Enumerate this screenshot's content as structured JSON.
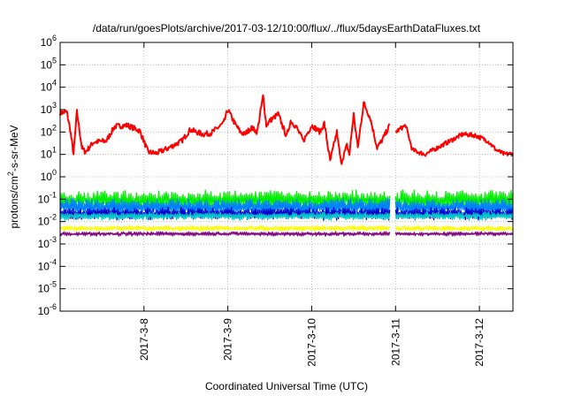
{
  "chart_data": {
    "type": "line",
    "title": "/data/run/goesPlots/archive/2017-03-12/10:00/flux/../flux/5daysEarthDataFluxes.txt",
    "xlabel": "Coordinated Universal Time (UTC)",
    "ylabel": {
      "prefix": "protons/cm",
      "sup": "2",
      "suffix": "-s-sr-MeV"
    },
    "yscale": "log",
    "ylim_exponent": [
      -6,
      6
    ],
    "y_ticks": [
      {
        "base": "10",
        "exp": "-6",
        "value": -6
      },
      {
        "base": "10",
        "exp": "-5",
        "value": -5
      },
      {
        "base": "10",
        "exp": "-4",
        "value": -4
      },
      {
        "base": "10",
        "exp": "-3",
        "value": -3
      },
      {
        "base": "10",
        "exp": "-2",
        "value": -2
      },
      {
        "base": "10",
        "exp": "-1",
        "value": -1
      },
      {
        "base": "10",
        "exp": "0",
        "value": 0
      },
      {
        "base": "10",
        "exp": "1",
        "value": 1
      },
      {
        "base": "10",
        "exp": "2",
        "value": 2
      },
      {
        "base": "10",
        "exp": "3",
        "value": 3
      },
      {
        "base": "10",
        "exp": "4",
        "value": 4
      },
      {
        "base": "10",
        "exp": "5",
        "value": 5
      },
      {
        "base": "10",
        "exp": "6",
        "value": 6
      }
    ],
    "xlim_days": [
      0,
      5.4
    ],
    "x_ticks": [
      {
        "label": "2017-3-8",
        "day": 1
      },
      {
        "label": "2017-3-9",
        "day": 2
      },
      {
        "label": "2017-3-10",
        "day": 3
      },
      {
        "label": "2017-3-11",
        "day": 4
      },
      {
        "label": "2017-3-12",
        "day": 5
      }
    ],
    "grid": true,
    "data_gap_days": [
      3.93,
      4.0
    ],
    "series": [
      {
        "color": "#ff0000",
        "noise": 0.12,
        "log_values": [
          [
            0,
            2.85
          ],
          [
            0.08,
            2.9
          ],
          [
            0.12,
            2.1
          ],
          [
            0.16,
            1.0
          ],
          [
            0.2,
            2.9
          ],
          [
            0.26,
            1.3
          ],
          [
            0.3,
            1.1
          ],
          [
            0.4,
            1.55
          ],
          [
            0.55,
            1.6
          ],
          [
            0.65,
            2.25
          ],
          [
            0.8,
            2.3
          ],
          [
            0.95,
            2.05
          ],
          [
            1.05,
            1.1
          ],
          [
            1.15,
            1.05
          ],
          [
            1.3,
            1.3
          ],
          [
            1.45,
            1.6
          ],
          [
            1.55,
            2.1
          ],
          [
            1.7,
            1.9
          ],
          [
            1.8,
            1.95
          ],
          [
            1.95,
            2.4
          ],
          [
            2.0,
            3.0
          ],
          [
            2.08,
            2.4
          ],
          [
            2.15,
            2.0
          ],
          [
            2.2,
            1.9
          ],
          [
            2.28,
            2.2
          ],
          [
            2.35,
            2.0
          ],
          [
            2.42,
            3.6
          ],
          [
            2.46,
            2.3
          ],
          [
            2.5,
            2.5
          ],
          [
            2.6,
            2.8
          ],
          [
            2.7,
            1.8
          ],
          [
            2.75,
            2.5
          ],
          [
            2.82,
            2.2
          ],
          [
            2.9,
            1.6
          ],
          [
            3.0,
            2.3
          ],
          [
            3.1,
            2.0
          ],
          [
            3.15,
            2.4
          ],
          [
            3.22,
            0.7
          ],
          [
            3.3,
            2.0
          ],
          [
            3.35,
            0.6
          ],
          [
            3.42,
            1.4
          ],
          [
            3.45,
            1.0
          ],
          [
            3.5,
            2.8
          ],
          [
            3.55,
            1.3
          ],
          [
            3.62,
            3.3
          ],
          [
            3.7,
            2.6
          ],
          [
            3.78,
            1.3
          ],
          [
            3.85,
            1.7
          ],
          [
            3.93,
            2.3
          ]
        ]
      },
      {
        "color": "#ff0000",
        "noise": 0.1,
        "log_values": [
          [
            4.0,
            2.0
          ],
          [
            4.12,
            2.3
          ],
          [
            4.2,
            1.2
          ],
          [
            4.35,
            1.0
          ],
          [
            4.6,
            1.5
          ],
          [
            4.8,
            1.9
          ],
          [
            4.95,
            1.85
          ],
          [
            5.1,
            1.6
          ],
          [
            5.2,
            1.2
          ],
          [
            5.3,
            1.0
          ],
          [
            5.4,
            1.05
          ]
        ]
      },
      {
        "color": "#00ee00",
        "mean": -1.05,
        "amplitude": 0.4,
        "noise": 0.08
      },
      {
        "color": "#0080ff",
        "mean": -1.35,
        "amplitude": 0.35,
        "noise": 0.06
      },
      {
        "color": "#0000cd",
        "mean": -1.65,
        "amplitude": 0.25,
        "noise": 0.05
      },
      {
        "color": "#00c8c8",
        "mean": -1.75,
        "amplitude": 0.15,
        "noise": 0.04
      },
      {
        "color": "#ffff00",
        "mean": -2.3,
        "amplitude": 0.1,
        "noise": 0.03
      },
      {
        "color": "#800080",
        "mean": -2.55,
        "amplitude": 0.08,
        "noise": 0.03
      }
    ]
  }
}
